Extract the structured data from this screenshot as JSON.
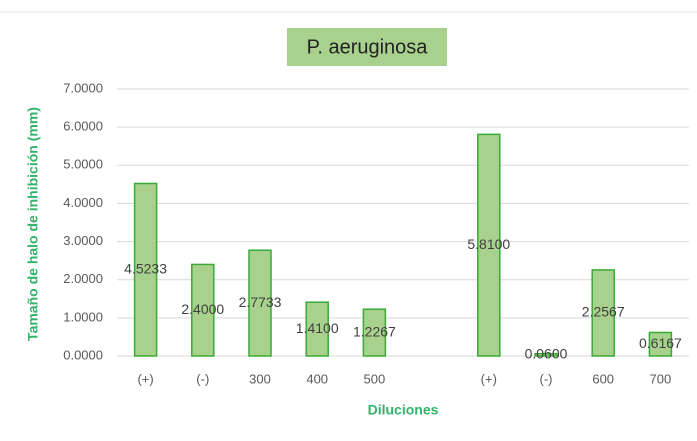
{
  "chart_data": {
    "type": "bar",
    "title": "P. aeruginosa",
    "x_label": "Diluciones",
    "y_label": "Tamaño de halo de inhibición (mm)",
    "categories": [
      "(+)",
      "(-)",
      "300",
      "400",
      "500",
      null,
      "(+)",
      "(-)",
      "600",
      "700"
    ],
    "values": [
      4.5233,
      2.4,
      2.7733,
      1.41,
      1.2267,
      null,
      5.81,
      0.06,
      2.2567,
      0.6167
    ],
    "value_labels": [
      "4.5233",
      "2.4000",
      "2.7733",
      "1.4100",
      "1.2267",
      null,
      "5.8100",
      "0.0600",
      "2.2567",
      "0.6167"
    ],
    "color": "#a9d18e",
    "edge_color": "#3aaa35",
    "ylim": [
      0,
      7
    ],
    "yticks": [
      {
        "value": 0,
        "label": "0.0000"
      },
      {
        "value": 1,
        "label": "1.0000"
      },
      {
        "value": 2,
        "label": "2.0000"
      },
      {
        "value": 3,
        "label": "3.0000"
      },
      {
        "value": 4,
        "label": "4.0000"
      },
      {
        "value": 5,
        "label": "5.0000"
      },
      {
        "value": 6,
        "label": "6.0000"
      },
      {
        "value": 7,
        "label": "7.0000"
      }
    ],
    "grid": true
  }
}
